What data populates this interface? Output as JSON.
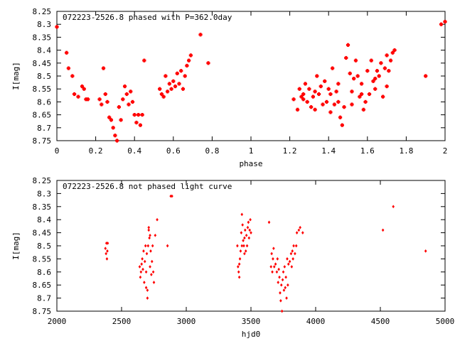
{
  "chart_data": [
    {
      "type": "scatter",
      "title": "072223-2526.8 phased with P=362.0day",
      "xlabel": "phase",
      "ylabel": "I[mag]",
      "xlim": [
        0,
        2
      ],
      "ylim": [
        8.75,
        8.25
      ],
      "y_inverted": true,
      "xticks": [
        "0",
        "0.2",
        "0.4",
        "0.6",
        "0.8",
        "1",
        "1.2",
        "1.4",
        "1.6",
        "1.8",
        "2"
      ],
      "yticks": [
        "8.25",
        "8.3",
        "8.35",
        "8.4",
        "8.45",
        "8.5",
        "8.55",
        "8.6",
        "8.65",
        "8.7",
        "8.75"
      ],
      "marker_color": "#ff0000",
      "grid": false,
      "points": [
        [
          0.0,
          8.31
        ],
        [
          0.05,
          8.41
        ],
        [
          0.06,
          8.47
        ],
        [
          0.08,
          8.5
        ],
        [
          0.09,
          8.57
        ],
        [
          0.11,
          8.58
        ],
        [
          0.13,
          8.54
        ],
        [
          0.14,
          8.55
        ],
        [
          0.15,
          8.59
        ],
        [
          0.16,
          8.59
        ],
        [
          0.22,
          8.59
        ],
        [
          0.23,
          8.61
        ],
        [
          0.24,
          8.47
        ],
        [
          0.25,
          8.57
        ],
        [
          0.26,
          8.6
        ],
        [
          0.27,
          8.66
        ],
        [
          0.28,
          8.67
        ],
        [
          0.29,
          8.7
        ],
        [
          0.3,
          8.73
        ],
        [
          0.31,
          8.75
        ],
        [
          0.32,
          8.62
        ],
        [
          0.33,
          8.67
        ],
        [
          0.34,
          8.59
        ],
        [
          0.35,
          8.54
        ],
        [
          0.36,
          8.57
        ],
        [
          0.37,
          8.61
        ],
        [
          0.38,
          8.56
        ],
        [
          0.39,
          8.6
        ],
        [
          0.4,
          8.65
        ],
        [
          0.41,
          8.68
        ],
        [
          0.42,
          8.65
        ],
        [
          0.43,
          8.69
        ],
        [
          0.44,
          8.65
        ],
        [
          0.45,
          8.44
        ],
        [
          0.53,
          8.55
        ],
        [
          0.54,
          8.57
        ],
        [
          0.55,
          8.58
        ],
        [
          0.56,
          8.5
        ],
        [
          0.57,
          8.56
        ],
        [
          0.58,
          8.53
        ],
        [
          0.59,
          8.55
        ],
        [
          0.6,
          8.52
        ],
        [
          0.61,
          8.54
        ],
        [
          0.62,
          8.49
        ],
        [
          0.63,
          8.53
        ],
        [
          0.64,
          8.48
        ],
        [
          0.65,
          8.55
        ],
        [
          0.66,
          8.5
        ],
        [
          0.67,
          8.46
        ],
        [
          0.68,
          8.44
        ],
        [
          0.69,
          8.42
        ],
        [
          0.74,
          8.34
        ],
        [
          0.78,
          8.45
        ],
        [
          1.22,
          8.59
        ],
        [
          1.24,
          8.63
        ],
        [
          1.25,
          8.55
        ],
        [
          1.26,
          8.58
        ],
        [
          1.27,
          8.57
        ],
        [
          1.28,
          8.53
        ],
        [
          1.29,
          8.6
        ],
        [
          1.3,
          8.55
        ],
        [
          1.31,
          8.62
        ],
        [
          1.32,
          8.58
        ],
        [
          1.33,
          8.63
        ],
        [
          1.34,
          8.5
        ],
        [
          1.35,
          8.57
        ],
        [
          1.36,
          8.54
        ],
        [
          1.37,
          8.61
        ],
        [
          1.38,
          8.52
        ],
        [
          1.39,
          8.6
        ],
        [
          1.4,
          8.55
        ],
        [
          1.41,
          8.57
        ],
        [
          1.42,
          8.47
        ],
        [
          1.43,
          8.61
        ],
        [
          1.44,
          8.56
        ],
        [
          1.45,
          8.6
        ],
        [
          1.46,
          8.66
        ],
        [
          1.47,
          8.69
        ],
        [
          1.48,
          8.62
        ],
        [
          1.49,
          8.43
        ],
        [
          1.5,
          8.38
        ],
        [
          1.51,
          8.49
        ],
        [
          1.52,
          8.56
        ],
        [
          1.53,
          8.51
        ],
        [
          1.54,
          8.44
        ],
        [
          1.55,
          8.5
        ],
        [
          1.56,
          8.58
        ],
        [
          1.57,
          8.53
        ],
        [
          1.58,
          8.63
        ],
        [
          1.59,
          8.6
        ],
        [
          1.6,
          8.48
        ],
        [
          1.61,
          8.57
        ],
        [
          1.62,
          8.44
        ],
        [
          1.63,
          8.52
        ],
        [
          1.64,
          8.55
        ],
        [
          1.65,
          8.48
        ],
        [
          1.66,
          8.5
        ],
        [
          1.67,
          8.45
        ],
        [
          1.68,
          8.58
        ],
        [
          1.69,
          8.47
        ],
        [
          1.7,
          8.42
        ],
        [
          1.71,
          8.48
        ],
        [
          1.72,
          8.44
        ],
        [
          1.73,
          8.41
        ],
        [
          1.74,
          8.4
        ],
        [
          1.9,
          8.5
        ],
        [
          1.98,
          8.3
        ],
        [
          2.0,
          8.29
        ],
        [
          1.27,
          8.59
        ],
        [
          1.33,
          8.56
        ],
        [
          1.41,
          8.64
        ],
        [
          1.45,
          8.53
        ],
        [
          1.52,
          8.61
        ],
        [
          1.57,
          8.57
        ],
        [
          1.64,
          8.51
        ],
        [
          1.7,
          8.54
        ]
      ]
    },
    {
      "type": "scatter",
      "title": "072223-2526.8 not phased light curve",
      "xlabel": "hjd0",
      "ylabel": "I[mag]",
      "xlim": [
        2000,
        5000
      ],
      "ylim": [
        8.75,
        8.25
      ],
      "y_inverted": true,
      "xticks": [
        "2000",
        "2500",
        "3000",
        "3500",
        "4000",
        "4500",
        "5000"
      ],
      "yticks": [
        "8.25",
        "8.3",
        "8.35",
        "8.4",
        "8.45",
        "8.5",
        "8.55",
        "8.6",
        "8.65",
        "8.7",
        "8.75"
      ],
      "marker_color": "#ff0000",
      "grid": false,
      "points": [
        [
          2375,
          8.51
        ],
        [
          2380,
          8.53
        ],
        [
          2383,
          8.49
        ],
        [
          2387,
          8.55
        ],
        [
          2390,
          8.52
        ],
        [
          2393,
          8.49
        ],
        [
          2640,
          8.58
        ],
        [
          2645,
          8.62
        ],
        [
          2650,
          8.6
        ],
        [
          2655,
          8.57
        ],
        [
          2660,
          8.55
        ],
        [
          2665,
          8.59
        ],
        [
          2670,
          8.52
        ],
        [
          2675,
          8.64
        ],
        [
          2680,
          8.56
        ],
        [
          2685,
          8.5
        ],
        [
          2690,
          8.6
        ],
        [
          2695,
          8.53
        ],
        [
          2700,
          8.67
        ],
        [
          2705,
          8.5
        ],
        [
          2710,
          8.44
        ],
        [
          2715,
          8.47
        ],
        [
          2720,
          8.58
        ],
        [
          2725,
          8.52
        ],
        [
          2730,
          8.61
        ],
        [
          2735,
          8.56
        ],
        [
          2740,
          8.5
        ],
        [
          2745,
          8.6
        ],
        [
          2750,
          8.64
        ],
        [
          2760,
          8.46
        ],
        [
          2775,
          8.4
        ],
        [
          2700,
          8.7
        ],
        [
          2690,
          8.66
        ],
        [
          2710,
          8.43
        ],
        [
          2720,
          8.46
        ],
        [
          2855,
          8.5
        ],
        [
          2880,
          8.31
        ],
        [
          2890,
          8.31
        ],
        [
          3395,
          8.5
        ],
        [
          3400,
          8.58
        ],
        [
          3405,
          8.6
        ],
        [
          3410,
          8.62
        ],
        [
          3415,
          8.55
        ],
        [
          3420,
          8.52
        ],
        [
          3425,
          8.45
        ],
        [
          3430,
          8.38
        ],
        [
          3435,
          8.42
        ],
        [
          3440,
          8.48
        ],
        [
          3445,
          8.5
        ],
        [
          3450,
          8.47
        ],
        [
          3455,
          8.44
        ],
        [
          3460,
          8.52
        ],
        [
          3465,
          8.46
        ],
        [
          3470,
          8.5
        ],
        [
          3475,
          8.43
        ],
        [
          3480,
          8.41
        ],
        [
          3485,
          8.47
        ],
        [
          3490,
          8.44
        ],
        [
          3495,
          8.4
        ],
        [
          3500,
          8.45
        ],
        [
          3450,
          8.53
        ],
        [
          3430,
          8.5
        ],
        [
          3410,
          8.57
        ],
        [
          3640,
          8.41
        ],
        [
          3655,
          8.58
        ],
        [
          3660,
          8.53
        ],
        [
          3665,
          8.6
        ],
        [
          3670,
          8.55
        ],
        [
          3675,
          8.51
        ],
        [
          3680,
          8.58
        ],
        [
          3690,
          8.57
        ],
        [
          3700,
          8.6
        ],
        [
          3705,
          8.55
        ],
        [
          3710,
          8.64
        ],
        [
          3715,
          8.59
        ],
        [
          3720,
          8.62
        ],
        [
          3725,
          8.68
        ],
        [
          3730,
          8.71
        ],
        [
          3735,
          8.65
        ],
        [
          3740,
          8.75
        ],
        [
          3745,
          8.63
        ],
        [
          3750,
          8.6
        ],
        [
          3755,
          8.67
        ],
        [
          3760,
          8.58
        ],
        [
          3765,
          8.66
        ],
        [
          3770,
          8.62
        ],
        [
          3775,
          8.7
        ],
        [
          3780,
          8.55
        ],
        [
          3785,
          8.65
        ],
        [
          3790,
          8.57
        ],
        [
          3800,
          8.56
        ],
        [
          3810,
          8.53
        ],
        [
          3815,
          8.58
        ],
        [
          3820,
          8.52
        ],
        [
          3825,
          8.55
        ],
        [
          3830,
          8.5
        ],
        [
          3840,
          8.53
        ],
        [
          3850,
          8.5
        ],
        [
          3855,
          8.45
        ],
        [
          3870,
          8.44
        ],
        [
          3880,
          8.43
        ],
        [
          3900,
          8.45
        ],
        [
          4520,
          8.44
        ],
        [
          4600,
          8.35
        ],
        [
          4850,
          8.52
        ]
      ]
    }
  ]
}
